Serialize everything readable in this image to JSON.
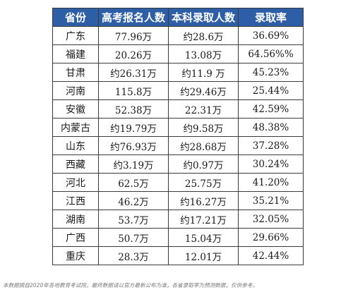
{
  "table": {
    "headers": [
      "省份",
      "高考报名人数",
      "本科录取人数",
      "录取率"
    ],
    "rows": [
      [
        "广东",
        "77.96万",
        "约28.6万",
        "36.69%"
      ],
      [
        "福建",
        "20.26万",
        "13.08万",
        "64.56%%"
      ],
      [
        "甘肃",
        "约26.31万",
        "约11.9 万",
        "45.23%"
      ],
      [
        "河南",
        "115.8万",
        "约29.46万",
        "25.44%"
      ],
      [
        "安徽",
        "52.38万",
        "22.31万",
        "42.59%"
      ],
      [
        "内蒙古",
        "约19.79万",
        "约9.58万",
        "48.38%"
      ],
      [
        "山东",
        "约76.93万",
        "约28.68万",
        "37.28%"
      ],
      [
        "西藏",
        "约3.19万",
        "约0.97万",
        "30.24%"
      ],
      [
        "河北",
        "62.5万",
        "25.75万",
        "41.20%"
      ],
      [
        "江西",
        "46.2万",
        "约16.27万",
        "35.21%"
      ],
      [
        "湖南",
        "53.7万",
        "约17.21万",
        "32.05%"
      ],
      [
        "广西",
        "50.7万",
        "15.04万",
        "29.66%"
      ],
      [
        "重庆",
        "28.3万",
        "12.01万",
        "42.44%"
      ]
    ]
  },
  "footnote": "本数据摘自2020年各地教育考试院，最终数据请以官方最新公布为准，各省录取率为预测数据，仅供参考。",
  "colors": {
    "header_bg": "#2e5fa6",
    "header_text": "#ffffff",
    "border": "#3a3a3a",
    "footnote_text": "#7a7a7a"
  }
}
